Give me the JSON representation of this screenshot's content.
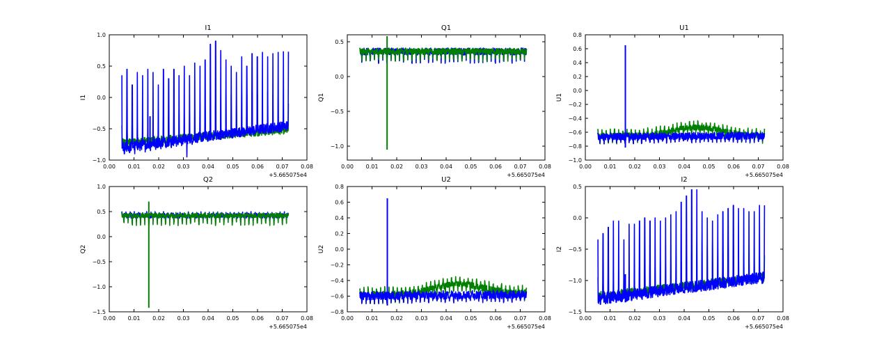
{
  "figure": {
    "colors": {
      "blue": "#0000ff",
      "green": "#007f00"
    }
  },
  "chart_data": [
    {
      "type": "line",
      "title": "I1",
      "xlabel": "",
      "ylabel": "I1",
      "x_offset_label": "+5.665075e4",
      "xlim": [
        0.0,
        0.08
      ],
      "ylim": [
        -1.0,
        1.0
      ],
      "xticks": [
        "0.00",
        "0.01",
        "0.02",
        "0.03",
        "0.04",
        "0.05",
        "0.06",
        "0.07",
        "0.08"
      ],
      "yticks": [
        "−1.0",
        "−0.5",
        "0.0",
        "0.5",
        "1.0"
      ],
      "x_range": [
        0.005,
        0.0725
      ],
      "series": [
        {
          "name": "green",
          "color": "#007f00",
          "base_start": -0.72,
          "base_end": -0.52,
          "band": 0.12,
          "spike_tops": [
            -0.45,
            -0.5,
            -0.4,
            -0.45,
            -0.35,
            -0.5,
            -0.4,
            -0.3,
            -0.35,
            -0.25,
            -0.3,
            -0.2,
            -0.3,
            -0.25,
            -0.2,
            -0.1,
            -0.2,
            -0.15,
            -0.1,
            0.0,
            0.1,
            0.05,
            -0.05,
            0.1,
            0.05,
            0.1,
            0.05,
            -0.05,
            0.1,
            0.05,
            0.0,
            -0.1
          ],
          "spike_bottoms": [
            -0.85,
            -0.8,
            -0.85,
            -0.82,
            -0.78,
            -0.8,
            -0.75,
            -0.75,
            -0.72,
            -0.7,
            -0.72,
            -0.68,
            -0.7,
            -0.66,
            -0.65,
            -0.62,
            -0.64,
            -0.62,
            -0.6,
            -0.58,
            -0.6,
            -0.58,
            -0.55,
            -0.55,
            -0.58,
            -0.56,
            -0.54,
            -0.52,
            -0.55,
            -0.52,
            -0.5,
            -0.52
          ]
        },
        {
          "name": "blue",
          "color": "#0000ff",
          "base_start": -0.8,
          "base_end": -0.45,
          "band": 0.16,
          "spike_tops": [
            0.35,
            0.45,
            0.2,
            0.4,
            0.35,
            0.45,
            0.4,
            0.2,
            0.45,
            0.3,
            0.45,
            0.35,
            0.5,
            0.35,
            0.55,
            0.5,
            0.6,
            0.85,
            0.9,
            0.75,
            0.6,
            0.5,
            0.4,
            0.65,
            0.5,
            0.7,
            0.65,
            0.72,
            0.65,
            0.7,
            0.72,
            0.73
          ],
          "spike_bottoms": [
            -0.9,
            -0.88,
            -0.9,
            -0.85,
            -0.87,
            -0.85,
            -0.83,
            -0.82,
            -0.8,
            -0.8,
            -0.78,
            -0.77,
            -0.95,
            -0.75,
            -0.72,
            -0.7,
            -0.7,
            -0.68,
            -0.66,
            -0.65,
            -0.62,
            -0.6,
            -0.6,
            -0.58,
            -0.6,
            -0.58,
            -0.55,
            -0.55,
            -0.55,
            -0.52,
            -0.55,
            -0.5
          ],
          "spikes": [
            {
              "x": 0.0165,
              "y0": -0.75,
              "y1": -0.3
            }
          ]
        }
      ]
    },
    {
      "type": "line",
      "title": "Q1",
      "xlabel": "",
      "ylabel": "Q1",
      "x_offset_label": "+5.665075e4",
      "xlim": [
        0.0,
        0.08
      ],
      "ylim": [
        -1.2,
        0.6
      ],
      "xticks": [
        "0.00",
        "0.01",
        "0.02",
        "0.03",
        "0.04",
        "0.05",
        "0.06",
        "0.07",
        "0.08"
      ],
      "yticks": [
        "−1.0",
        "−0.5",
        "0.0",
        "0.5"
      ],
      "x_range": [
        0.005,
        0.0725
      ],
      "series": [
        {
          "name": "blue",
          "color": "#0000ff",
          "base_start": 0.36,
          "base_end": 0.36,
          "band": 0.1,
          "amp_up": 0.05,
          "amp_down": 0.17
        },
        {
          "name": "green",
          "color": "#007f00",
          "base_start": 0.36,
          "base_end": 0.36,
          "band": 0.08,
          "amp_up": 0.05,
          "amp_down": 0.14,
          "spikes": [
            {
              "x": 0.0161,
              "y0": -1.05,
              "y1": 0.58
            }
          ]
        }
      ]
    },
    {
      "type": "line",
      "title": "U1",
      "xlabel": "",
      "ylabel": "U1",
      "x_offset_label": "+5.665075e4",
      "xlim": [
        0.0,
        0.08
      ],
      "ylim": [
        -1.0,
        0.8
      ],
      "xticks": [
        "0.00",
        "0.01",
        "0.02",
        "0.03",
        "0.04",
        "0.05",
        "0.06",
        "0.07",
        "0.08"
      ],
      "yticks": [
        "−1.0",
        "−0.8",
        "−0.6",
        "−0.4",
        "−0.2",
        "0.0",
        "0.2",
        "0.4",
        "0.6",
        "0.8"
      ],
      "x_range": [
        0.005,
        0.0725
      ],
      "series": [
        {
          "name": "green",
          "color": "#007f00",
          "base_start": -0.65,
          "base_end": -0.65,
          "band": 0.08,
          "amp_up": 0.1,
          "amp_down": 0.12,
          "hump": 0.12,
          "hump_center": 0.045
        },
        {
          "name": "blue",
          "color": "#0000ff",
          "base_start": -0.67,
          "base_end": -0.65,
          "band": 0.1,
          "amp_up": 0.06,
          "amp_down": 0.1,
          "spikes": [
            {
              "x": 0.0162,
              "y0": -0.82,
              "y1": 0.65
            }
          ]
        }
      ]
    },
    {
      "type": "line",
      "title": "Q2",
      "xlabel": "",
      "ylabel": "Q2",
      "x_offset_label": "+5.665075e4",
      "xlim": [
        0.0,
        0.08
      ],
      "ylim": [
        -1.5,
        1.0
      ],
      "xticks": [
        "0.00",
        "0.01",
        "0.02",
        "0.03",
        "0.04",
        "0.05",
        "0.06",
        "0.07",
        "0.08"
      ],
      "yticks": [
        "−1.5",
        "−1.0",
        "−0.5",
        "0.0",
        "0.5",
        "1.0"
      ],
      "x_range": [
        0.005,
        0.0725
      ],
      "series": [
        {
          "name": "blue",
          "color": "#0000ff",
          "base_start": 0.42,
          "base_end": 0.42,
          "band": 0.1,
          "amp_up": 0.08,
          "amp_down": 0.12
        },
        {
          "name": "green",
          "color": "#007f00",
          "base_start": 0.42,
          "base_end": 0.42,
          "band": 0.08,
          "amp_up": 0.06,
          "amp_down": 0.2,
          "spikes": [
            {
              "x": 0.016,
              "y0": -1.42,
              "y1": 0.7
            }
          ]
        }
      ]
    },
    {
      "type": "line",
      "title": "U2",
      "xlabel": "",
      "ylabel": "U2",
      "x_offset_label": "+5.665075e4",
      "xlim": [
        0.0,
        0.08
      ],
      "ylim": [
        -0.8,
        0.8
      ],
      "xticks": [
        "0.00",
        "0.01",
        "0.02",
        "0.03",
        "0.04",
        "0.05",
        "0.06",
        "0.07",
        "0.08"
      ],
      "yticks": [
        "−0.8",
        "−0.6",
        "−0.4",
        "−0.2",
        "0.0",
        "0.2",
        "0.4",
        "0.6",
        "0.8"
      ],
      "x_range": [
        0.005,
        0.0725
      ],
      "series": [
        {
          "name": "green",
          "color": "#007f00",
          "base_start": -0.58,
          "base_end": -0.56,
          "band": 0.08,
          "amp_up": 0.1,
          "amp_down": 0.12,
          "hump": 0.12,
          "hump_center": 0.045
        },
        {
          "name": "blue",
          "color": "#0000ff",
          "base_start": -0.6,
          "base_end": -0.58,
          "band": 0.1,
          "amp_up": 0.06,
          "amp_down": 0.1,
          "spikes": [
            {
              "x": 0.0162,
              "y0": -0.72,
              "y1": 0.65
            }
          ]
        }
      ]
    },
    {
      "type": "line",
      "title": "I2",
      "xlabel": "",
      "ylabel": "I2",
      "x_offset_label": "+5.665075e4",
      "xlim": [
        0.0,
        0.08
      ],
      "ylim": [
        -1.5,
        0.5
      ],
      "xticks": [
        "0.00",
        "0.01",
        "0.02",
        "0.03",
        "0.04",
        "0.05",
        "0.06",
        "0.07",
        "0.08"
      ],
      "yticks": [
        "−1.5",
        "−1.0",
        "−0.5",
        "0.0",
        "0.5"
      ],
      "x_range": [
        0.005,
        0.0725
      ],
      "series": [
        {
          "name": "green",
          "color": "#007f00",
          "base_start": -1.25,
          "base_end": -0.95,
          "band": 0.14,
          "spike_tops": [
            -0.95,
            -1.0,
            -0.9,
            -1.0,
            -0.85,
            -0.9,
            -0.8,
            -0.75,
            -0.8,
            -0.7,
            -0.75,
            -0.8,
            -0.7,
            -0.75,
            -0.7,
            -0.6,
            -0.7,
            -0.65,
            -0.55,
            -0.4,
            -0.35,
            -0.45,
            -0.4,
            -0.5,
            -0.55,
            -0.45,
            -0.5,
            -0.55,
            -0.6,
            -0.55,
            -0.65,
            -0.6
          ],
          "spike_bottoms": [
            -1.35,
            -1.3,
            -1.32,
            -1.3,
            -1.28,
            -1.27,
            -1.25,
            -1.25,
            -1.22,
            -1.2,
            -1.22,
            -1.2,
            -1.18,
            -1.18,
            -1.15,
            -1.15,
            -1.12,
            -1.12,
            -1.1,
            -1.1,
            -1.08,
            -1.08,
            -1.06,
            -1.05,
            -1.05,
            -1.05,
            -1.03,
            -1.02,
            -1.02,
            -1.0,
            -1.0,
            -1.0
          ]
        },
        {
          "name": "blue",
          "color": "#0000ff",
          "base_start": -1.3,
          "base_end": -0.95,
          "band": 0.18,
          "spike_tops": [
            -0.35,
            -0.25,
            -0.15,
            -0.05,
            -0.05,
            -0.35,
            -0.1,
            -0.1,
            -0.05,
            0.0,
            -0.05,
            0.0,
            -0.05,
            0.0,
            0.05,
            0.1,
            0.25,
            0.35,
            0.45,
            0.45,
            0.1,
            0.0,
            -0.05,
            0.05,
            0.1,
            0.15,
            0.2,
            0.15,
            0.15,
            0.1,
            0.1,
            0.2
          ],
          "spike_bottoms": [
            -1.38,
            -1.37,
            -1.36,
            -1.35,
            -1.34,
            -1.33,
            -1.32,
            -1.3,
            -1.3,
            -1.28,
            -1.27,
            -1.25,
            -1.24,
            -1.22,
            -1.21,
            -1.2,
            -1.18,
            -1.17,
            -1.15,
            -1.14,
            -1.12,
            -1.12,
            -1.1,
            -1.1,
            -1.1,
            -1.08,
            -1.08,
            -1.07,
            -1.06,
            -1.06,
            -1.05,
            -1.05
          ],
          "spikes": [
            {
              "x": 0.0162,
              "y0": -1.35,
              "y1": -0.9
            }
          ]
        }
      ]
    }
  ]
}
